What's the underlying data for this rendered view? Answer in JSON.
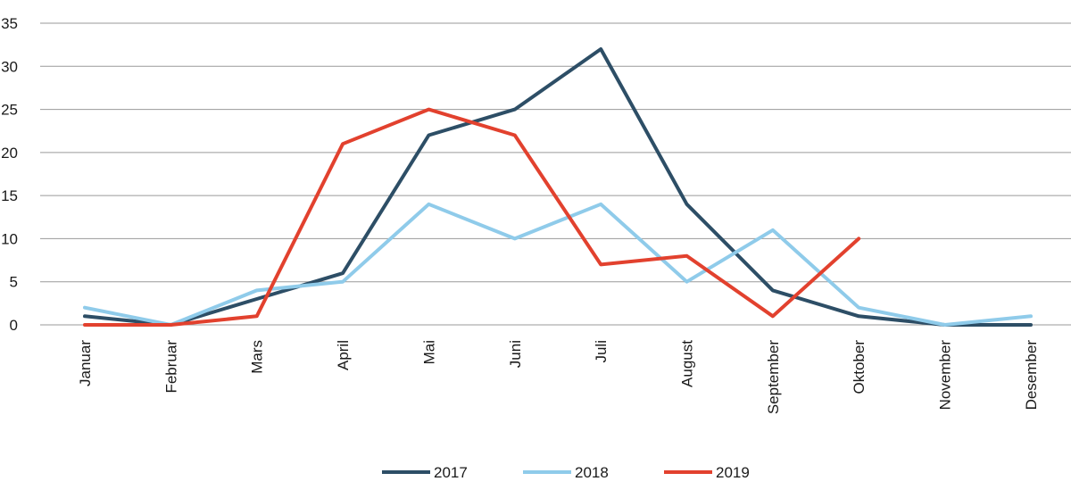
{
  "chart_data": {
    "type": "line",
    "title": "",
    "xlabel": "",
    "ylabel": "",
    "ylim": [
      0,
      35
    ],
    "yticks": [
      0,
      5,
      10,
      15,
      20,
      25,
      30,
      35
    ],
    "grid": true,
    "legend_position": "bottom",
    "categories": [
      "Januar",
      "Februar",
      "Mars",
      "April",
      "Mai",
      "Juni",
      "Juli",
      "August",
      "September",
      "Oktober",
      "November",
      "Desember"
    ],
    "series": [
      {
        "name": "2017",
        "color": "#2d4e66",
        "values": [
          1,
          0,
          3,
          6,
          22,
          25,
          32,
          14,
          4,
          1,
          0,
          0
        ]
      },
      {
        "name": "2018",
        "color": "#8fcbea",
        "values": [
          2,
          0,
          4,
          5,
          14,
          10,
          14,
          5,
          11,
          2,
          0,
          1
        ]
      },
      {
        "name": "2019",
        "color": "#e2412e",
        "values": [
          0,
          0,
          1,
          21,
          25,
          22,
          7,
          8,
          1,
          10,
          null,
          null
        ]
      }
    ]
  }
}
